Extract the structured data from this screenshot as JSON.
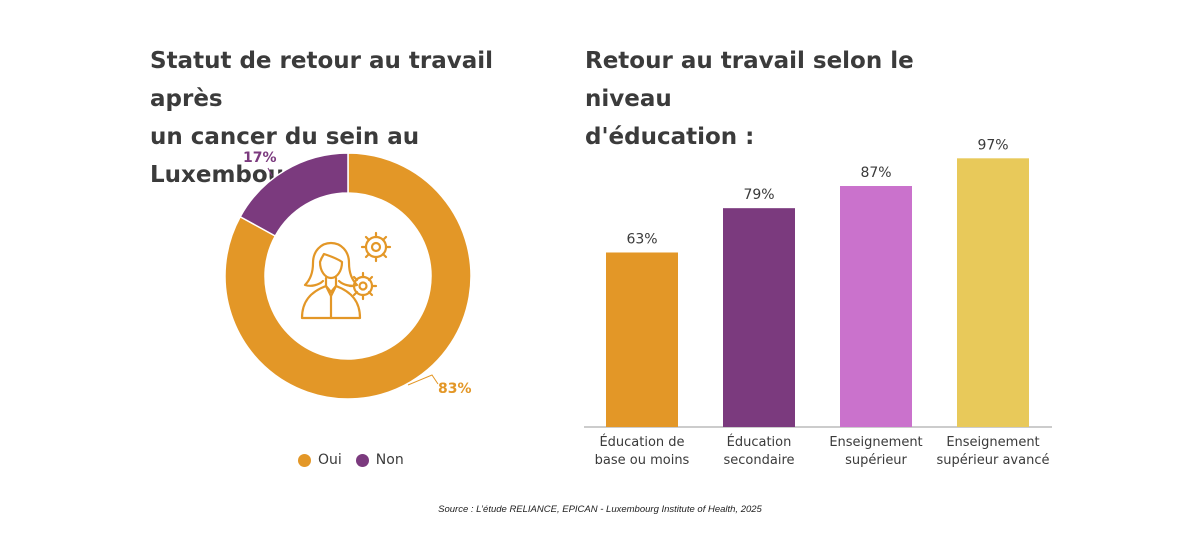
{
  "titles": {
    "left_line1": "Statut de retour au travail après",
    "left_line2": "un cancer du sein au Luxembourg :",
    "right_line1": "Retour au travail selon le niveau",
    "right_line2": "d'éducation :"
  },
  "source": "Source : L’étude RELIANCE, EPICAN - Luxembourg Institute of Health, 2025",
  "chart_data": [
    {
      "type": "pie",
      "title": "Statut de retour au travail après un cancer du sein au Luxembourg :",
      "style": "donut",
      "slices": [
        {
          "label": "Oui",
          "value": 83,
          "display": "83%",
          "color": "#E39727"
        },
        {
          "label": "Non",
          "value": 17,
          "display": "17%",
          "color": "#7B3A7E"
        }
      ],
      "legend": [
        "Oui",
        "Non"
      ],
      "legend_position": "bottom",
      "center_icon": "person-gears-icon"
    },
    {
      "type": "bar",
      "title": "Retour au travail selon le niveau d'éducation :",
      "categories": [
        [
          "Éducation de",
          "base ou moins"
        ],
        [
          "Éducation",
          "secondaire"
        ],
        [
          "Enseignement",
          "supérieur"
        ],
        [
          "Enseignement",
          "supérieur avancé"
        ]
      ],
      "values": [
        63,
        79,
        87,
        97
      ],
      "labels": [
        "63%",
        "79%",
        "87%",
        "97%"
      ],
      "colors": [
        "#E39727",
        "#7B3A7E",
        "#CA72CC",
        "#E8C95A"
      ],
      "ylim": [
        0,
        100
      ],
      "grid": false,
      "xlabel": "",
      "ylabel": ""
    }
  ]
}
